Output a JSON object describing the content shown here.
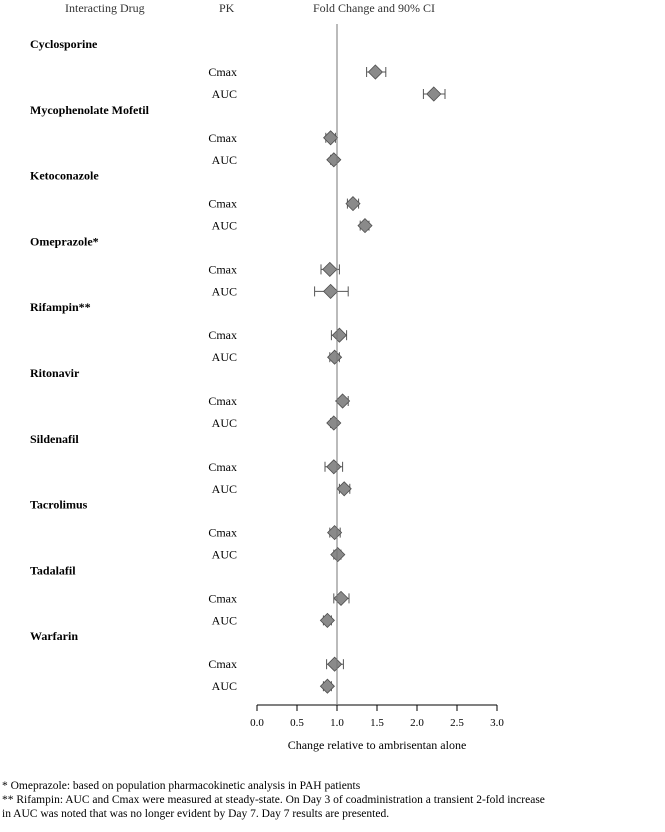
{
  "chart_data": {
    "type": "forest",
    "headers": {
      "drug": "Interacting Drug",
      "pk": "PK",
      "effect": "Fold Change and 90% CI"
    },
    "xlabel": "Change relative to ambrisentan alone",
    "xlim": [
      0.0,
      3.0
    ],
    "xticks": [
      "0.0",
      "0.5",
      "1.0",
      "1.5",
      "2.0",
      "2.5",
      "3.0"
    ],
    "reference_line": 1.0,
    "groups": [
      {
        "drug": "Cyclosporine",
        "rows": [
          {
            "pk": "Cmax",
            "value": 1.48,
            "lo": 1.37,
            "hi": 1.61
          },
          {
            "pk": "AUC",
            "value": 2.21,
            "lo": 2.08,
            "hi": 2.35
          }
        ]
      },
      {
        "drug": "Mycophenolate Mofetil",
        "rows": [
          {
            "pk": "Cmax",
            "value": 0.92,
            "lo": 0.86,
            "hi": 0.98
          },
          {
            "pk": "AUC",
            "value": 0.96,
            "lo": 0.92,
            "hi": 1.0
          }
        ]
      },
      {
        "drug": "Ketoconazole",
        "rows": [
          {
            "pk": "Cmax",
            "value": 1.2,
            "lo": 1.13,
            "hi": 1.27
          },
          {
            "pk": "AUC",
            "value": 1.35,
            "lo": 1.29,
            "hi": 1.4
          }
        ]
      },
      {
        "drug": "Omeprazole*",
        "rows": [
          {
            "pk": "Cmax",
            "value": 0.91,
            "lo": 0.8,
            "hi": 1.03
          },
          {
            "pk": "AUC",
            "value": 0.92,
            "lo": 0.72,
            "hi": 1.14
          }
        ]
      },
      {
        "drug": "Rifampin**",
        "rows": [
          {
            "pk": "Cmax",
            "value": 1.03,
            "lo": 0.93,
            "hi": 1.12
          },
          {
            "pk": "AUC",
            "value": 0.97,
            "lo": 0.91,
            "hi": 1.03
          }
        ]
      },
      {
        "drug": "Ritonavir",
        "rows": [
          {
            "pk": "Cmax",
            "value": 1.07,
            "lo": 1.0,
            "hi": 1.14
          },
          {
            "pk": "AUC",
            "value": 0.96,
            "lo": 0.92,
            "hi": 1.0
          }
        ]
      },
      {
        "drug": "Sildenafil",
        "rows": [
          {
            "pk": "Cmax",
            "value": 0.96,
            "lo": 0.85,
            "hi": 1.07
          },
          {
            "pk": "AUC",
            "value": 1.09,
            "lo": 1.03,
            "hi": 1.16
          }
        ]
      },
      {
        "drug": "Tacrolimus",
        "rows": [
          {
            "pk": "Cmax",
            "value": 0.97,
            "lo": 0.91,
            "hi": 1.04
          },
          {
            "pk": "AUC",
            "value": 1.01,
            "lo": 0.96,
            "hi": 1.05
          }
        ]
      },
      {
        "drug": "Tadalafil",
        "rows": [
          {
            "pk": "Cmax",
            "value": 1.05,
            "lo": 0.96,
            "hi": 1.15
          },
          {
            "pk": "AUC",
            "value": 0.88,
            "lo": 0.83,
            "hi": 0.93
          }
        ]
      },
      {
        "drug": "Warfarin",
        "rows": [
          {
            "pk": "Cmax",
            "value": 0.97,
            "lo": 0.87,
            "hi": 1.08
          },
          {
            "pk": "AUC",
            "value": 0.88,
            "lo": 0.83,
            "hi": 0.93
          }
        ]
      }
    ]
  },
  "footnotes": [
    "* Omeprazole: based on population pharmacokinetic analysis in PAH patients",
    "** Rifampin: AUC and Cmax were measured at steady-state. On Day 3 of coadministration a transient 2-fold increase",
    "in AUC was noted that was no longer evident by Day 7. Day 7 results are presented."
  ],
  "colors": {
    "marker_fill": "#8a8a8a",
    "marker_stroke": "#4d4d4d",
    "line": "#555555"
  }
}
